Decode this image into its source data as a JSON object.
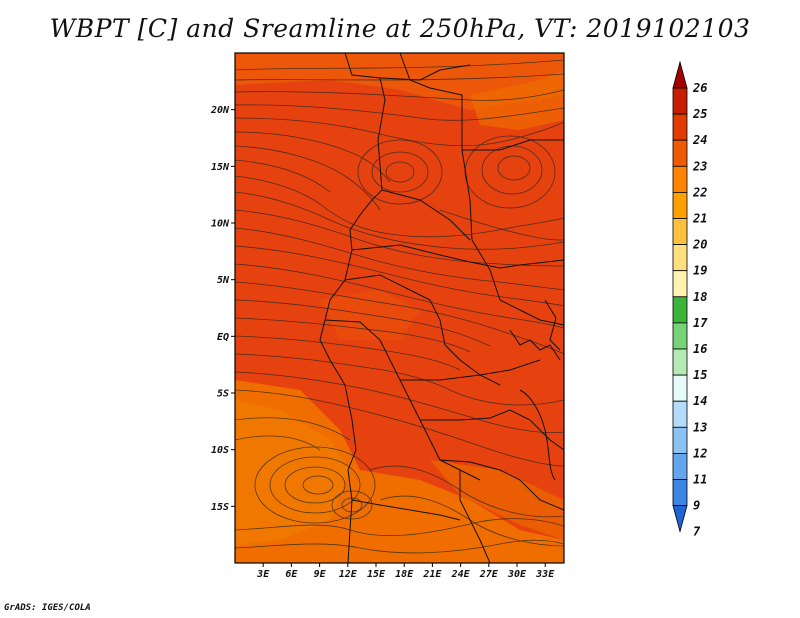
{
  "title": "WBPT [C] and Sreamline at 250hPa, VT: 2019102103",
  "credit": "GrADS: IGES/COLA",
  "map": {
    "lat_labels": [
      {
        "label": "20N",
        "lat": 20
      },
      {
        "label": "15N",
        "lat": 15
      },
      {
        "label": "10N",
        "lat": 10
      },
      {
        "label": "5N",
        "lat": 5
      },
      {
        "label": "EQ",
        "lat": 0
      },
      {
        "label": "5S",
        "lat": -5
      },
      {
        "label": "10S",
        "lat": -10
      },
      {
        "label": "15S",
        "lat": -15
      }
    ],
    "lon_labels": [
      {
        "label": "3E",
        "lon": 3
      },
      {
        "label": "6E",
        "lon": 6
      },
      {
        "label": "9E",
        "lon": 9
      },
      {
        "label": "12E",
        "lon": 12
      },
      {
        "label": "15E",
        "lon": 15
      },
      {
        "label": "18E",
        "lon": 18
      },
      {
        "label": "21E",
        "lon": 21
      },
      {
        "label": "24E",
        "lon": 24
      },
      {
        "label": "27E",
        "lon": 27
      },
      {
        "label": "30E",
        "lon": 30
      },
      {
        "label": "33E",
        "lon": 33
      }
    ],
    "lat_range": [
      -20,
      25
    ],
    "lon_range": [
      0,
      35
    ]
  },
  "colorbar": {
    "labels": [
      "26",
      "25",
      "24",
      "23",
      "22",
      "21",
      "20",
      "19",
      "18",
      "17",
      "16",
      "15",
      "14",
      "13",
      "12",
      "11",
      "9",
      "7"
    ],
    "colors": [
      "#a50000",
      "#c81e00",
      "#e03c00",
      "#f05a00",
      "#ff8200",
      "#ffa000",
      "#ffc040",
      "#ffe080",
      "#fff4b0",
      "#3cb43c",
      "#78d278",
      "#b4ebb4",
      "#e6fafa",
      "#b4dcfa",
      "#8cc3f5",
      "#64a5f0",
      "#3c87e6",
      "#1e64d2"
    ]
  }
}
